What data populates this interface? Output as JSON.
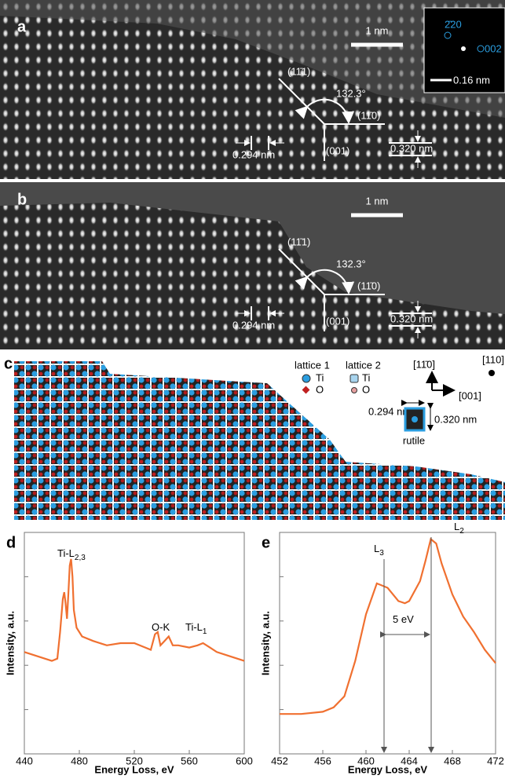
{
  "panel_a": {
    "label": "a",
    "scale_bar": "1 nm",
    "plane_1": "(11̄1)",
    "angle": "132.3°",
    "plane_2": "(11̄0)",
    "plane_3": "(001)",
    "spacing_1": "0.294 nm",
    "spacing_2": "0.320 nm",
    "inset": {
      "spot_1": "2̄20",
      "spot_2": "002",
      "scale_bar": "0.16 nm"
    }
  },
  "panel_b": {
    "label": "b",
    "scale_bar": "1 nm",
    "plane_1": "(11̄1)",
    "angle": "132.3°",
    "plane_2": "(11̄0)",
    "plane_3": "(001)",
    "spacing_1": "0.294 nm",
    "spacing_2": "0.320 nm"
  },
  "panel_c": {
    "label": "c",
    "legend": {
      "lattice_1": "lattice 1",
      "lattice_2": "lattice 2",
      "ti_1": "Ti",
      "o_1": "O",
      "ti_2": "Ti",
      "o_2": "O"
    },
    "axes": {
      "up": "[11̄0]",
      "out": "[110]",
      "right": "[001]"
    },
    "spacing_1": "0.294 nm",
    "spacing_2": "0.320 nm",
    "cell": "rutile"
  },
  "chart_data": [
    {
      "type": "line",
      "panel_label": "d",
      "x_label": "Energy Loss, eV",
      "y_label": "Intensity, a.u.",
      "color": "#f07030",
      "annotations": [
        {
          "text": "Ti-L",
          "sub": "2,3"
        },
        {
          "text": "O-K"
        },
        {
          "text": "Ti-L",
          "sub": "1"
        }
      ],
      "x": [
        440,
        450,
        460,
        464,
        466,
        468,
        469,
        470,
        471,
        472,
        473,
        474,
        475,
        476,
        478,
        482,
        490,
        500,
        510,
        520,
        528,
        532,
        535,
        537,
        539,
        542,
        545,
        548,
        552,
        560,
        566,
        570,
        575,
        580,
        590,
        600
      ],
      "y": [
        0.46,
        0.44,
        0.42,
        0.43,
        0.55,
        0.7,
        0.73,
        0.68,
        0.61,
        0.72,
        0.85,
        0.88,
        0.8,
        0.65,
        0.57,
        0.53,
        0.51,
        0.49,
        0.5,
        0.5,
        0.48,
        0.47,
        0.54,
        0.55,
        0.49,
        0.51,
        0.53,
        0.49,
        0.49,
        0.48,
        0.49,
        0.5,
        0.48,
        0.46,
        0.44,
        0.42
      ],
      "xlim": [
        440,
        600
      ],
      "xticks": [
        440,
        480,
        520,
        560,
        600
      ],
      "ylim": [
        0,
        1
      ]
    },
    {
      "type": "line",
      "panel_label": "e",
      "x_label": "Energy Loss, eV",
      "y_label": "Intensity, a.u.",
      "color": "#f07030",
      "annotations": [
        {
          "text": "L",
          "sub": "3"
        },
        {
          "text": "L",
          "sub": "2"
        },
        {
          "text": "5 eV"
        }
      ],
      "x": [
        452,
        454,
        456,
        457,
        458,
        459,
        460,
        461,
        462,
        463,
        463.6,
        464,
        465,
        465.5,
        466,
        466.5,
        467,
        468,
        469,
        470,
        471,
        472
      ],
      "y": [
        0.18,
        0.18,
        0.19,
        0.21,
        0.26,
        0.42,
        0.63,
        0.77,
        0.75,
        0.69,
        0.68,
        0.69,
        0.78,
        0.87,
        0.97,
        0.95,
        0.86,
        0.72,
        0.62,
        0.55,
        0.47,
        0.41
      ],
      "xlim": [
        452,
        472
      ],
      "xticks": [
        452,
        456,
        460,
        464,
        468,
        472
      ],
      "ylim": [
        0,
        1
      ]
    }
  ]
}
